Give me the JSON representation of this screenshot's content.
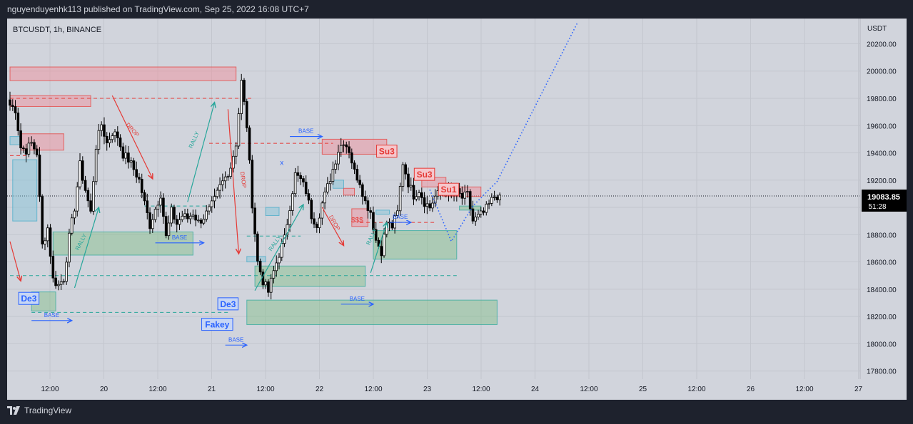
{
  "header": {
    "published": "nguyenduyenhk113 published on TradingView.com, Sep 25, 2022 16:08 UTC+7"
  },
  "footer": {
    "brand": "TradingView",
    "brand_icon": "tradingview-logo-icon"
  },
  "colors": {
    "background": "#d1d4dc",
    "frame": "#1e222d",
    "up": "#ffffff",
    "down": "#000000",
    "supply_zone": "#f28b96",
    "demand_zone": "#7fbf84",
    "base_zone": "#7ec3d6",
    "red": "#e53935",
    "green": "#26a69a",
    "blue": "#2962ff",
    "price_tag": "#000000"
  },
  "chart_data": {
    "type": "candlestick",
    "symbol_label": "BTCUSDT, 1h, BINANCE",
    "y_unit": "USDT",
    "y_ticks": [
      17800,
      18000,
      18200,
      18400,
      18600,
      18800,
      19000,
      19200,
      19400,
      19600,
      19800,
      20000,
      20200
    ],
    "y_tick_labels": [
      "17800.00",
      "18000.00",
      "18200.00",
      "18400.00",
      "18600.00",
      "18800.00",
      "19000.00",
      "19200.00",
      "19400.00",
      "19600.00",
      "19800.00",
      "20000.00",
      "20200.00"
    ],
    "ylim": [
      17700,
      20360
    ],
    "x_ticks": [
      "12:00",
      "20",
      "12:00",
      "21",
      "12:00",
      "22",
      "12:00",
      "23",
      "12:00",
      "24",
      "12:00",
      "25",
      "12:00",
      "26",
      "12:00",
      "27"
    ],
    "current_price": "19083.85",
    "countdown": "51:28",
    "candle_anchors": [
      [
        0,
        19750
      ],
      [
        2,
        19720
      ],
      [
        4,
        19440
      ],
      [
        6,
        19420
      ],
      [
        8,
        19470
      ],
      [
        10,
        19400
      ],
      [
        12,
        18720
      ],
      [
        14,
        18850
      ],
      [
        16,
        18470
      ],
      [
        18,
        18430
      ],
      [
        20,
        18480
      ],
      [
        22,
        18780
      ],
      [
        24,
        19000
      ],
      [
        26,
        19310
      ],
      [
        28,
        19130
      ],
      [
        30,
        18960
      ],
      [
        32,
        19450
      ],
      [
        34,
        19610
      ],
      [
        36,
        19470
      ],
      [
        38,
        19550
      ],
      [
        40,
        19520
      ],
      [
        42,
        19390
      ],
      [
        44,
        19350
      ],
      [
        46,
        19280
      ],
      [
        48,
        19200
      ],
      [
        50,
        19030
      ],
      [
        52,
        18870
      ],
      [
        54,
        18990
      ],
      [
        56,
        19100
      ],
      [
        58,
        18780
      ],
      [
        60,
        18970
      ],
      [
        62,
        18880
      ],
      [
        64,
        18940
      ],
      [
        66,
        18920
      ],
      [
        68,
        18960
      ],
      [
        70,
        18890
      ],
      [
        72,
        18930
      ],
      [
        74,
        18980
      ],
      [
        76,
        19050
      ],
      [
        78,
        19150
      ],
      [
        80,
        19220
      ],
      [
        82,
        19300
      ],
      [
        84,
        19470
      ],
      [
        86,
        19920
      ],
      [
        88,
        19600
      ],
      [
        90,
        19030
      ],
      [
        92,
        18600
      ],
      [
        94,
        18460
      ],
      [
        96,
        18380
      ],
      [
        98,
        18530
      ],
      [
        100,
        18660
      ],
      [
        102,
        18770
      ],
      [
        104,
        19010
      ],
      [
        106,
        19240
      ],
      [
        108,
        19200
      ],
      [
        110,
        19120
      ],
      [
        112,
        18940
      ],
      [
        114,
        18880
      ],
      [
        116,
        19030
      ],
      [
        118,
        19150
      ],
      [
        120,
        19280
      ],
      [
        122,
        19420
      ],
      [
        124,
        19490
      ],
      [
        126,
        19420
      ],
      [
        128,
        19260
      ],
      [
        130,
        19190
      ],
      [
        132,
        19040
      ],
      [
        134,
        18970
      ],
      [
        136,
        18760
      ],
      [
        138,
        18680
      ],
      [
        140,
        18890
      ],
      [
        142,
        18860
      ],
      [
        144,
        18960
      ],
      [
        146,
        19330
      ],
      [
        148,
        19180
      ],
      [
        150,
        19090
      ],
      [
        152,
        19130
      ],
      [
        154,
        19040
      ],
      [
        156,
        19000
      ],
      [
        158,
        19080
      ],
      [
        160,
        19110
      ],
      [
        162,
        19130
      ],
      [
        164,
        19080
      ],
      [
        166,
        19110
      ],
      [
        168,
        19070
      ],
      [
        170,
        19090
      ],
      [
        172,
        18900
      ],
      [
        174,
        18930
      ],
      [
        176,
        18960
      ],
      [
        178,
        19020
      ],
      [
        180,
        19080
      ],
      [
        182,
        19090
      ]
    ],
    "zones": [
      {
        "kind": "supply",
        "x0": 0,
        "x1": 84,
        "y0": 19930,
        "y1": 20030
      },
      {
        "kind": "supply",
        "x0": 0,
        "x1": 30,
        "y0": 19740,
        "y1": 19820
      },
      {
        "kind": "supply",
        "x0": 4,
        "x1": 20,
        "y0": 19420,
        "y1": 19540
      },
      {
        "kind": "base",
        "x0": 0,
        "x1": 4,
        "y0": 19460,
        "y1": 19520
      },
      {
        "kind": "base",
        "x0": 1,
        "x1": 10,
        "y0": 18900,
        "y1": 19350
      },
      {
        "kind": "demand",
        "x0": 16,
        "x1": 68,
        "y0": 18650,
        "y1": 18820
      },
      {
        "kind": "demand",
        "x0": 8,
        "x1": 17,
        "y0": 18240,
        "y1": 18380
      },
      {
        "kind": "base",
        "x0": 88,
        "x1": 95,
        "y0": 18600,
        "y1": 18640
      },
      {
        "kind": "demand",
        "x0": 91,
        "x1": 132,
        "y0": 18420,
        "y1": 18570
      },
      {
        "kind": "demand",
        "x0": 88,
        "x1": 181,
        "y0": 18140,
        "y1": 18320
      },
      {
        "kind": "base",
        "x0": 95,
        "x1": 100,
        "y0": 18940,
        "y1": 19000
      },
      {
        "kind": "supply",
        "x0": 116,
        "x1": 140,
        "y0": 19390,
        "y1": 19500
      },
      {
        "kind": "base",
        "x0": 120,
        "x1": 124,
        "y0": 19140,
        "y1": 19200
      },
      {
        "kind": "supply",
        "x0": 124,
        "x1": 128,
        "y0": 19090,
        "y1": 19140
      },
      {
        "kind": "supply",
        "x0": 127,
        "x1": 133,
        "y0": 18860,
        "y1": 18990
      },
      {
        "kind": "base",
        "x0": 136,
        "x1": 141,
        "y0": 18950,
        "y1": 18980
      },
      {
        "kind": "demand",
        "x0": 135,
        "x1": 166,
        "y0": 18620,
        "y1": 18830
      },
      {
        "kind": "supply",
        "x0": 153,
        "x1": 162,
        "y0": 19150,
        "y1": 19220
      },
      {
        "kind": "supply",
        "x0": 161,
        "x1": 175,
        "y0": 19080,
        "y1": 19150
      },
      {
        "kind": "demand",
        "x0": 167,
        "x1": 175,
        "y0": 18980,
        "y1": 19010
      }
    ],
    "levels": [
      {
        "color": "red",
        "x0": 0,
        "x1": 90,
        "y": 19800
      },
      {
        "color": "red",
        "x0": 0,
        "x1": 6,
        "y": 19380
      },
      {
        "color": "red",
        "x0": 74,
        "x1": 120,
        "y": 19470
      },
      {
        "color": "red",
        "x0": 130,
        "x1": 158,
        "y": 18890
      },
      {
        "color": "green",
        "x0": 0,
        "x1": 166,
        "y": 18500
      },
      {
        "color": "green",
        "x0": 8,
        "x1": 82,
        "y": 18230
      },
      {
        "color": "green",
        "x0": 88,
        "x1": 108,
        "y": 18790
      },
      {
        "color": "green",
        "x0": 50,
        "x1": 74,
        "y": 19010
      }
    ],
    "arrows": [
      {
        "color": "red",
        "label": "DROP",
        "x0": 38,
        "y0": 19820,
        "x1": 53,
        "y1": 19210,
        "label_x": 45,
        "label_y": 19560,
        "angle": 48
      },
      {
        "color": "red",
        "label": "DROP",
        "x0": 81,
        "y0": 19720,
        "x1": 85,
        "y1": 18660,
        "label_x": 86,
        "label_y": 19200,
        "angle": 82
      },
      {
        "color": "red",
        "label": "DROP",
        "x0": 116,
        "y0": 19000,
        "x1": 124,
        "y1": 18720,
        "label_x": 120,
        "label_y": 18880,
        "angle": 60
      },
      {
        "color": "red",
        "label": "",
        "x0": 0,
        "y0": 18750,
        "x1": 4,
        "y1": 18460,
        "label_x": 0,
        "label_y": 0,
        "angle": 0
      },
      {
        "color": "green",
        "label": "RALLY",
        "x0": 66,
        "y0": 19040,
        "x1": 76,
        "y1": 19770,
        "label_x": 69,
        "label_y": 19490,
        "angle": -66
      },
      {
        "color": "green",
        "label": "RALLY",
        "x0": 24,
        "y0": 18410,
        "x1": 33,
        "y1": 19000,
        "label_x": 27,
        "label_y": 18740,
        "angle": -62
      },
      {
        "color": "green",
        "label": "RALLY",
        "x0": 91,
        "y0": 18390,
        "x1": 109,
        "y1": 19020,
        "label_x": 99,
        "label_y": 18730,
        "angle": -55
      },
      {
        "color": "green",
        "label": "RALLY",
        "x0": 134,
        "y0": 18520,
        "x1": 140,
        "y1": 18890,
        "label_x": 135,
        "label_y": 18780,
        "angle": -65
      }
    ],
    "base_labels": [
      {
        "text": "BASE",
        "x0": 54,
        "x1": 72,
        "y": 18740
      },
      {
        "text": "BASE",
        "x0": 8,
        "x1": 23,
        "y": 18170
      },
      {
        "text": "BASE",
        "x0": 104,
        "x1": 116,
        "y": 19520
      },
      {
        "text": "BASE",
        "x0": 80,
        "x1": 88,
        "y": 17990
      },
      {
        "text": "BASE",
        "x0": 123,
        "x1": 135,
        "y": 18290
      },
      {
        "text": "BASE",
        "x0": 141,
        "x1": 149,
        "y": 18890
      }
    ],
    "boxed_labels": [
      {
        "text": "De3",
        "x": 7,
        "y": 18330,
        "color": "blue"
      },
      {
        "text": "De3",
        "x": 81,
        "y": 18290,
        "color": "blue"
      },
      {
        "text": "Fakey",
        "x": 77,
        "y": 18140,
        "color": "blue"
      },
      {
        "text": "Su3",
        "x": 140,
        "y": 19410,
        "color": "red"
      },
      {
        "text": "Su3",
        "x": 154,
        "y": 19240,
        "color": "red"
      },
      {
        "text": "Su1",
        "x": 163,
        "y": 19130,
        "color": "red"
      }
    ],
    "free_labels": [
      {
        "text": "$$$",
        "x": 129,
        "y": 18890,
        "color": "red"
      },
      {
        "text": "x",
        "x": 101,
        "y": 19310,
        "color": "blue"
      }
    ],
    "dotted_path": [
      [
        156,
        19130
      ],
      [
        164,
        18750
      ],
      [
        172,
        19010
      ],
      [
        181,
        19190
      ],
      [
        211,
        20360
      ]
    ]
  }
}
